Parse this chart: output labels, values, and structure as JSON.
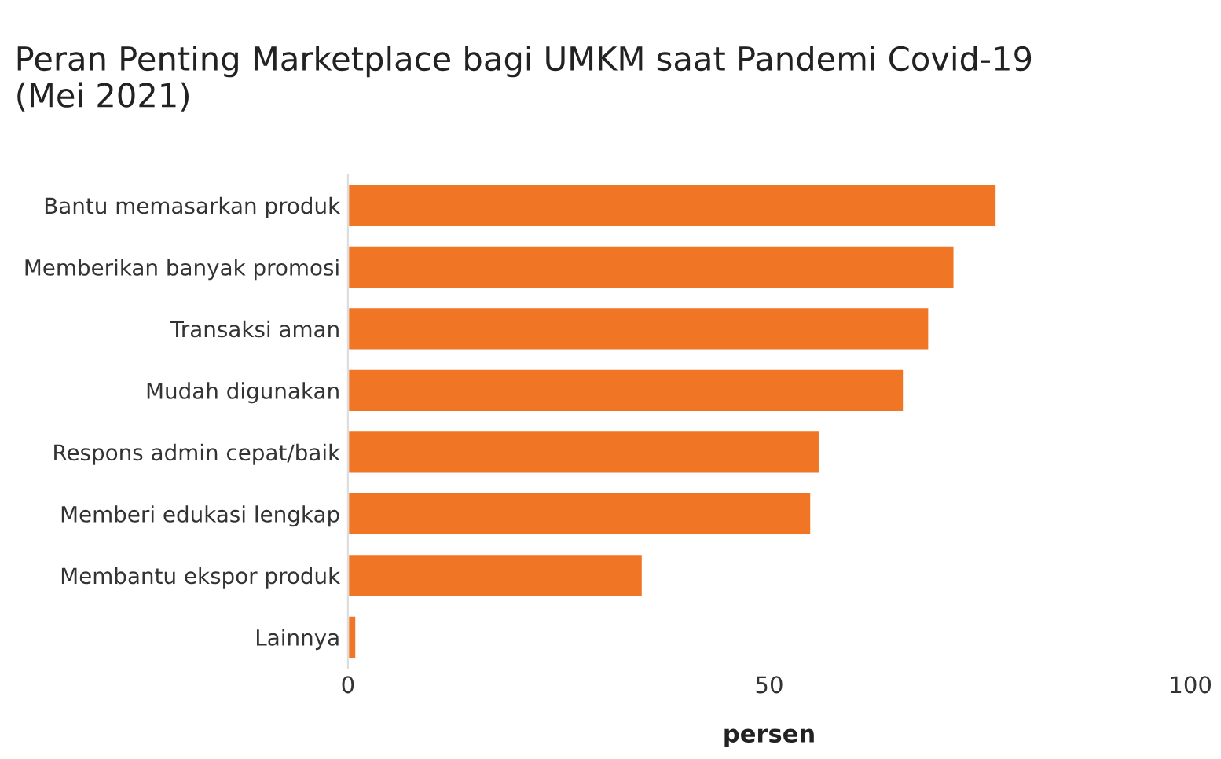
{
  "chart_data": {
    "type": "bar",
    "orientation": "horizontal",
    "title": "Peran Penting Marketplace bagi UMKM saat Pandemi Covid-19\n(Mei 2021)",
    "xlabel": "persen",
    "categories": [
      "Bantu memasarkan produk",
      "Memberikan banyak promosi",
      "Transaksi aman",
      "Mudah digunakan",
      "Respons admin cepat/baik",
      "Memberi edukasi lengkap",
      "Membantu ekspor produk",
      "Lainnya"
    ],
    "values": [
      77,
      72,
      69,
      66,
      56,
      55,
      35,
      1
    ],
    "color": "#f07524",
    "xlim": [
      0,
      100
    ],
    "xticks": [
      0,
      50,
      100
    ],
    "grid": false,
    "legend": false
  }
}
